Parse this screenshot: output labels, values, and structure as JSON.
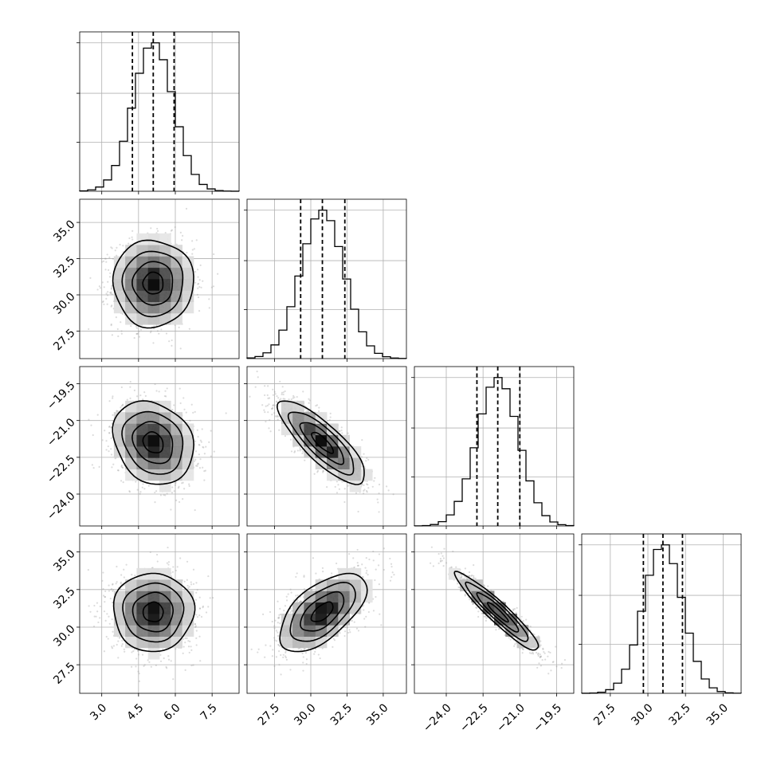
{
  "chart_data": {
    "type": "corner",
    "params": [
      {
        "mean": 5.1,
        "sd": 0.82,
        "range": [
          2.1,
          8.6
        ],
        "ticks": [
          3.0,
          4.5,
          6.0,
          7.5
        ],
        "tick_labels": [
          "3.0",
          "4.5",
          "6.0",
          "7.5"
        ],
        "quantiles": [
          4.25,
          5.1,
          5.95
        ]
      },
      {
        "mean": 30.8,
        "sd": 1.5,
        "range": [
          25.6,
          36.6
        ],
        "ticks": [
          27.5,
          30.0,
          32.5,
          35.0
        ],
        "tick_labels": [
          "27.5",
          "30.0",
          "32.5",
          "35.0"
        ],
        "quantiles": [
          29.3,
          30.8,
          32.35
        ]
      },
      {
        "mean": -21.9,
        "sd": 0.85,
        "range": [
          -25.3,
          -18.8
        ],
        "ticks": [
          -24.0,
          -22.5,
          -21.0,
          -19.5
        ],
        "tick_labels": [
          "−24.0",
          "−22.5",
          "−21.0",
          "−19.5"
        ],
        "quantiles": [
          -22.75,
          -21.9,
          -21.0
        ]
      },
      {
        "mean": 31.0,
        "sd": 1.3,
        "range": [
          25.6,
          36.2
        ],
        "ticks": [
          27.5,
          30.0,
          32.5,
          35.0
        ],
        "tick_labels": [
          "27.5",
          "30.0",
          "32.5",
          "35.0"
        ],
        "quantiles": [
          29.7,
          31.0,
          32.3
        ]
      }
    ],
    "correlations": [
      [
        1.0,
        0.0,
        -0.2,
        0.0
      ],
      [
        0.0,
        1.0,
        -0.82,
        0.6
      ],
      [
        -0.2,
        -0.82,
        1.0,
        -0.94
      ],
      [
        0.0,
        0.6,
        -0.94,
        1.0
      ]
    ],
    "contour_levels_sigma": [
      0.5,
      1.0,
      1.5,
      2.0
    ],
    "histogram_bins": 20,
    "grid": true,
    "title": "",
    "xlabel": "",
    "ylabel": ""
  }
}
